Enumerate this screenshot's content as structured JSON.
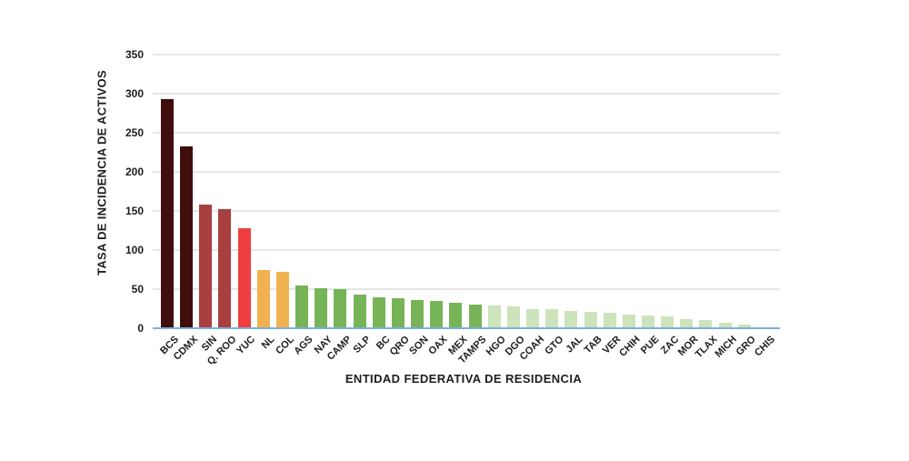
{
  "chart_data": {
    "type": "bar",
    "title": "",
    "xlabel": "ENTIDAD FEDERATIVA DE RESIDENCIA",
    "ylabel": "TASA DE INCIDENCIA DE ACTIVOS",
    "categories": [
      "BCS",
      "CDMX",
      "SIN",
      "Q. ROO",
      "YUC",
      "NL",
      "COL",
      "AGS",
      "NAY",
      "CAMP",
      "SLP",
      "BC",
      "QRO",
      "SON",
      "OAX",
      "MEX",
      "TAMPS",
      "HGO",
      "DGO",
      "COAH",
      "GTO",
      "JAL",
      "TAB",
      "VER",
      "CHIH",
      "PUE",
      "ZAC",
      "MOR",
      "TLAX",
      "MICH",
      "GRO",
      "CHIS"
    ],
    "values": [
      293,
      233,
      158,
      152,
      128,
      74,
      72,
      55,
      51,
      50,
      43,
      40,
      38,
      36,
      35,
      33,
      30,
      29,
      28,
      25,
      24,
      22,
      21,
      20,
      18,
      16,
      15,
      12,
      10,
      7,
      5,
      1
    ],
    "bar_colors": [
      "#400d0d",
      "#400d0d",
      "#a84040",
      "#a84040",
      "#ef3e3e",
      "#f2b150",
      "#f2b150",
      "#76b457",
      "#76b457",
      "#76b457",
      "#76b457",
      "#76b457",
      "#76b457",
      "#76b457",
      "#76b457",
      "#76b457",
      "#76b457",
      "#cce3bb",
      "#cce3bb",
      "#cce3bb",
      "#cce3bb",
      "#cce3bb",
      "#cce3bb",
      "#cce3bb",
      "#cce3bb",
      "#cce3bb",
      "#cce3bb",
      "#cce3bb",
      "#cce3bb",
      "#cce3bb",
      "#cce3bb",
      "#cce3bb"
    ],
    "yticks": [
      0,
      50,
      100,
      150,
      200,
      250,
      300,
      350
    ],
    "ylim": [
      0,
      350
    ],
    "grid": "horizontal",
    "legend": "none",
    "colors": {
      "gridline": "#e6e6e6",
      "baseline": "#7cb0dc",
      "text": "#1d1d1b",
      "background": "#ffffff"
    }
  }
}
